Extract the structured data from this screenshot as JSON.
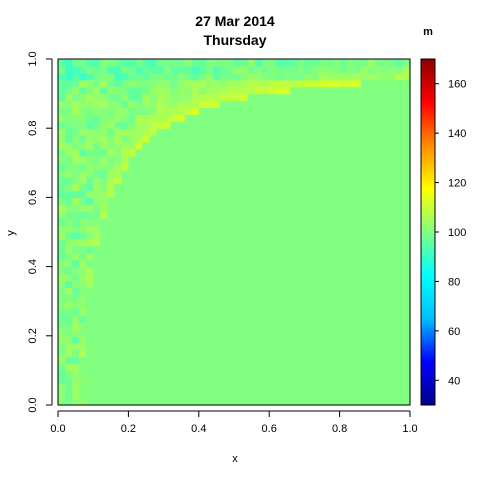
{
  "chart_data": {
    "type": "heatmap",
    "title": "27 Mar 2014",
    "subtitle": "Thursday",
    "xlabel": "x",
    "ylabel": "y",
    "xlim": [
      0,
      1
    ],
    "ylim": [
      0,
      1
    ],
    "x_ticks": [
      "0.0",
      "0.2",
      "0.4",
      "0.6",
      "0.8",
      "1.0"
    ],
    "y_ticks": [
      "0.0",
      "0.2",
      "0.4",
      "0.6",
      "0.8",
      "1.0"
    ],
    "colorbar": {
      "title": "m",
      "range": [
        30,
        170
      ],
      "ticks": [
        "40",
        "60",
        "80",
        "100",
        "120",
        "140",
        "160"
      ],
      "palette": [
        "#00008B",
        "#0000FF",
        "#00BFFF",
        "#00FFFF",
        "#80FF80",
        "#FFFF00",
        "#FF8C00",
        "#FF0000",
        "#8B0000"
      ]
    },
    "grid_resolution": 50,
    "field": {
      "background_value": 100,
      "band_peak_value": 112,
      "band_curve": "y = 1 - 0.06 / x (approx. upper-left hyperbolic band)",
      "noise_region": "upper-left above band"
    }
  }
}
